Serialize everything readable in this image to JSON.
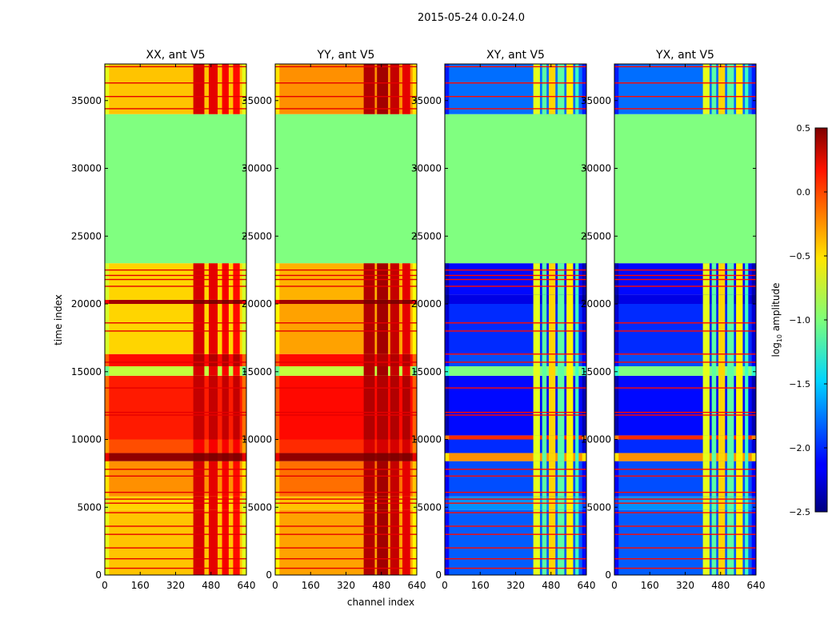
{
  "chart_data": {
    "type": "heatmap",
    "suptitle": "2015-05-24 0.0-24.0",
    "xlabel": "channel index",
    "ylabel": "time index",
    "xlim": [
      0,
      640
    ],
    "ylim": [
      0,
      37700
    ],
    "xticks": [
      "0",
      "160",
      "320",
      "480",
      "640"
    ],
    "xtick_values": [
      0,
      160,
      320,
      480,
      640
    ],
    "yticks": [
      "0",
      "5000",
      "10000",
      "15000",
      "20000",
      "25000",
      "30000",
      "35000"
    ],
    "ytick_values": [
      0,
      5000,
      10000,
      15000,
      20000,
      25000,
      30000,
      35000
    ],
    "colorbar": {
      "label": "log10 amplitude",
      "label_main": "log",
      "label_sub": "10",
      "label_rest": " amplitude",
      "range": [
        -2.5,
        0.5
      ],
      "colormap": "jet",
      "ticks": [
        "0.5",
        "0.0",
        "−0.5",
        "−1.0",
        "−1.5",
        "−2.0",
        "−2.5"
      ],
      "tick_values": [
        0.5,
        0.0,
        -0.5,
        -1.0,
        -1.5,
        -2.0,
        -2.5
      ]
    },
    "panels": [
      {
        "title": "XX, ant V5",
        "base_bands": [
          [
            0,
            4800,
            -0.45
          ],
          [
            4800,
            5800,
            -0.5
          ],
          [
            5800,
            8400,
            -0.3
          ],
          [
            8400,
            9000,
            0.45
          ],
          [
            9000,
            10000,
            -0.1
          ],
          [
            10000,
            14700,
            0.05
          ],
          [
            14700,
            15400,
            -0.8
          ],
          [
            15400,
            16300,
            0.1
          ],
          [
            16300,
            20000,
            -0.5
          ],
          [
            20000,
            20300,
            0.4
          ],
          [
            20300,
            23000,
            -0.5
          ],
          [
            23000,
            34000,
            -1.0
          ],
          [
            34000,
            37700,
            -0.45
          ]
        ],
        "rfi_columns": [
          [
            400,
            450,
            0.25
          ],
          [
            470,
            510,
            0.2
          ],
          [
            530,
            560,
            0.15
          ],
          [
            580,
            610,
            0.1
          ]
        ],
        "flag_lines": [
          500,
          1200,
          2000,
          3000,
          3600,
          4600,
          5300,
          5600,
          6100,
          7300,
          7800,
          11800,
          12000,
          13800,
          15700,
          18000,
          18600,
          21300,
          21800,
          22100,
          22500,
          34400,
          35300,
          36300,
          37500
        ],
        "flag_value": 0.2
      },
      {
        "title": "YY, ant V5",
        "base_bands": [
          [
            0,
            4800,
            -0.35
          ],
          [
            4800,
            5800,
            -0.45
          ],
          [
            5800,
            8400,
            -0.2
          ],
          [
            8400,
            9000,
            0.45
          ],
          [
            9000,
            10000,
            0.0
          ],
          [
            10000,
            14700,
            0.1
          ],
          [
            14700,
            15400,
            -0.8
          ],
          [
            15400,
            16300,
            0.1
          ],
          [
            16300,
            20000,
            -0.35
          ],
          [
            20000,
            20300,
            0.4
          ],
          [
            20300,
            23000,
            -0.4
          ],
          [
            23000,
            34000,
            -1.0
          ],
          [
            34000,
            37700,
            -0.3
          ]
        ],
        "rfi_columns": [
          [
            400,
            450,
            0.35
          ],
          [
            460,
            510,
            0.4
          ],
          [
            520,
            560,
            0.3
          ],
          [
            575,
            610,
            0.2
          ]
        ],
        "flag_lines": [
          500,
          1200,
          2000,
          3000,
          3600,
          4600,
          5300,
          5600,
          6100,
          7300,
          7800,
          11800,
          12000,
          13800,
          15700,
          18000,
          18600,
          21300,
          21800,
          22100,
          22500,
          34400,
          35300,
          36300,
          37500
        ],
        "flag_value": 0.2
      },
      {
        "title": "XY, ant V5",
        "base_bands": [
          [
            0,
            4800,
            -1.85
          ],
          [
            4800,
            5800,
            -1.7
          ],
          [
            5800,
            8400,
            -1.9
          ],
          [
            8400,
            9000,
            -0.3
          ],
          [
            9000,
            10000,
            -2.0
          ],
          [
            10000,
            10300,
            0.0
          ],
          [
            10300,
            14700,
            -2.1
          ],
          [
            14700,
            15400,
            -1.0
          ],
          [
            15400,
            16300,
            -1.9
          ],
          [
            16300,
            20000,
            -2.0
          ],
          [
            20000,
            20700,
            -2.2
          ],
          [
            20700,
            23000,
            -2.1
          ],
          [
            23000,
            34000,
            -1.0
          ],
          [
            34000,
            37700,
            -1.8
          ]
        ],
        "rfi_columns": [
          [
            400,
            430,
            -0.7
          ],
          [
            440,
            460,
            -1.1
          ],
          [
            470,
            500,
            -0.5
          ],
          [
            510,
            540,
            -1.1
          ],
          [
            550,
            580,
            -0.6
          ],
          [
            590,
            605,
            -1.2
          ]
        ],
        "flag_lines": [
          500,
          1200,
          2000,
          3000,
          3600,
          4600,
          5300,
          5600,
          6100,
          7300,
          7800,
          11800,
          12000,
          13800,
          15700,
          16300,
          18000,
          18600,
          21300,
          21800,
          22100,
          22500,
          34400,
          35300,
          36300,
          37500
        ],
        "flag_value": 0.1
      },
      {
        "title": "YX, ant V5",
        "base_bands": [
          [
            0,
            4800,
            -1.85
          ],
          [
            4800,
            5800,
            -1.7
          ],
          [
            5800,
            8400,
            -1.9
          ],
          [
            8400,
            9000,
            -0.3
          ],
          [
            9000,
            10000,
            -2.0
          ],
          [
            10000,
            10300,
            0.0
          ],
          [
            10300,
            14700,
            -2.1
          ],
          [
            14700,
            15400,
            -1.0
          ],
          [
            15400,
            16300,
            -1.9
          ],
          [
            16300,
            20000,
            -2.0
          ],
          [
            20000,
            20700,
            -2.2
          ],
          [
            20700,
            23000,
            -2.1
          ],
          [
            23000,
            34000,
            -1.0
          ],
          [
            34000,
            37700,
            -1.8
          ]
        ],
        "rfi_columns": [
          [
            400,
            430,
            -0.7
          ],
          [
            440,
            460,
            -1.1
          ],
          [
            470,
            500,
            -0.5
          ],
          [
            510,
            540,
            -1.1
          ],
          [
            550,
            580,
            -0.6
          ],
          [
            590,
            605,
            -1.2
          ]
        ],
        "flag_lines": [
          500,
          1200,
          2000,
          3000,
          3600,
          4600,
          5300,
          5600,
          6100,
          7300,
          7800,
          11800,
          12000,
          13800,
          15700,
          16300,
          18000,
          18600,
          21300,
          21800,
          22100,
          22500,
          34400,
          35300,
          36300,
          37500
        ],
        "flag_value": 0.1
      }
    ]
  }
}
